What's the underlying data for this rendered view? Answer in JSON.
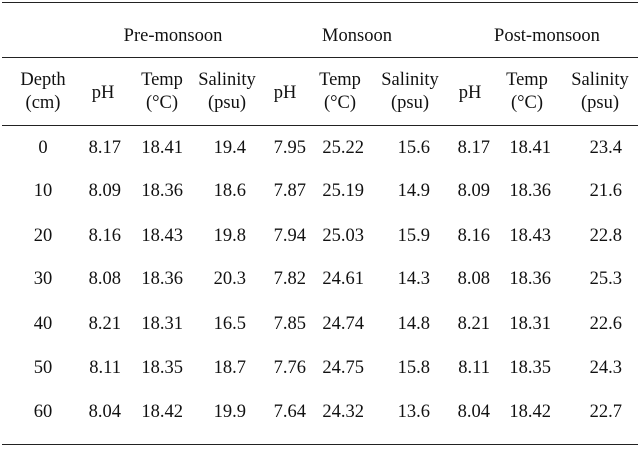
{
  "table": {
    "groups": [
      "Pre-monsoon",
      "Monsoon",
      "Post-monsoon"
    ],
    "columns": {
      "depth": [
        "Depth",
        "(cm)"
      ],
      "ph": "pH",
      "temp": [
        "Temp",
        "(°C)"
      ],
      "salinity": [
        "Salinity",
        "(psu)"
      ]
    },
    "rows": [
      {
        "depth": "0",
        "pre": [
          "8.17",
          "18.41",
          "19.4"
        ],
        "mon": [
          "7.95",
          "25.22",
          "15.6"
        ],
        "post": [
          "8.17",
          "18.41",
          "23.4"
        ]
      },
      {
        "depth": "10",
        "pre": [
          "8.09",
          "18.36",
          "18.6"
        ],
        "mon": [
          "7.87",
          "25.19",
          "14.9"
        ],
        "post": [
          "8.09",
          "18.36",
          "21.6"
        ]
      },
      {
        "depth": "20",
        "pre": [
          "8.16",
          "18.43",
          "19.8"
        ],
        "mon": [
          "7.94",
          "25.03",
          "15.9"
        ],
        "post": [
          "8.16",
          "18.43",
          "22.8"
        ]
      },
      {
        "depth": "30",
        "pre": [
          "8.08",
          "18.36",
          "20.3"
        ],
        "mon": [
          "7.82",
          "24.61",
          "14.3"
        ],
        "post": [
          "8.08",
          "18.36",
          "25.3"
        ]
      },
      {
        "depth": "40",
        "pre": [
          "8.21",
          "18.31",
          "16.5"
        ],
        "mon": [
          "7.85",
          "24.74",
          "14.8"
        ],
        "post": [
          "8.21",
          "18.31",
          "22.6"
        ]
      },
      {
        "depth": "50",
        "pre": [
          "8.11",
          "18.35",
          "18.7"
        ],
        "mon": [
          "7.76",
          "24.75",
          "15.8"
        ],
        "post": [
          "8.11",
          "18.35",
          "24.3"
        ]
      },
      {
        "depth": "60",
        "pre": [
          "8.04",
          "18.42",
          "19.9"
        ],
        "mon": [
          "7.64",
          "24.32",
          "13.6"
        ],
        "post": [
          "8.04",
          "18.42",
          "22.7"
        ]
      }
    ]
  }
}
